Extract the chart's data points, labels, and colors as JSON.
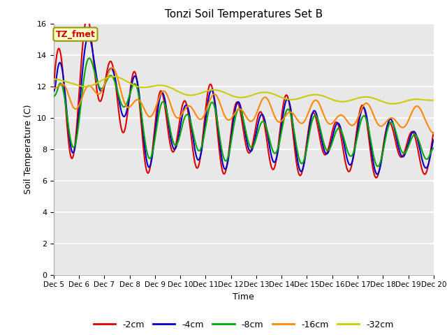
{
  "title": "Tonzi Soil Temperatures Set B",
  "xlabel": "Time",
  "ylabel": "Soil Temperature (C)",
  "ylim": [
    0,
    16
  ],
  "yticks": [
    0,
    2,
    4,
    6,
    8,
    10,
    12,
    14,
    16
  ],
  "x_labels": [
    "Dec 5",
    "Dec 6",
    "Dec 7",
    "Dec 8",
    "Dec 9",
    "Dec 10",
    "Dec 11",
    "Dec 12",
    "Dec 13",
    "Dec 14",
    "Dec 15",
    "Dec 16",
    "Dec 17",
    "Dec 18",
    "Dec 19",
    "Dec 20"
  ],
  "bg_color": "#e8e8e8",
  "annotation_text": "TZ_fmet",
  "annotation_color": "#cc0000",
  "annotation_bg": "#ffffcc",
  "annotation_border": "#999900",
  "series_colors": [
    "#dd0000",
    "#0000cc",
    "#00aa00",
    "#ff8800",
    "#cccc00"
  ],
  "series_labels": [
    "-2cm",
    "-4cm",
    "-8cm",
    "-16cm",
    "-32cm"
  ],
  "line_width": 1.5
}
